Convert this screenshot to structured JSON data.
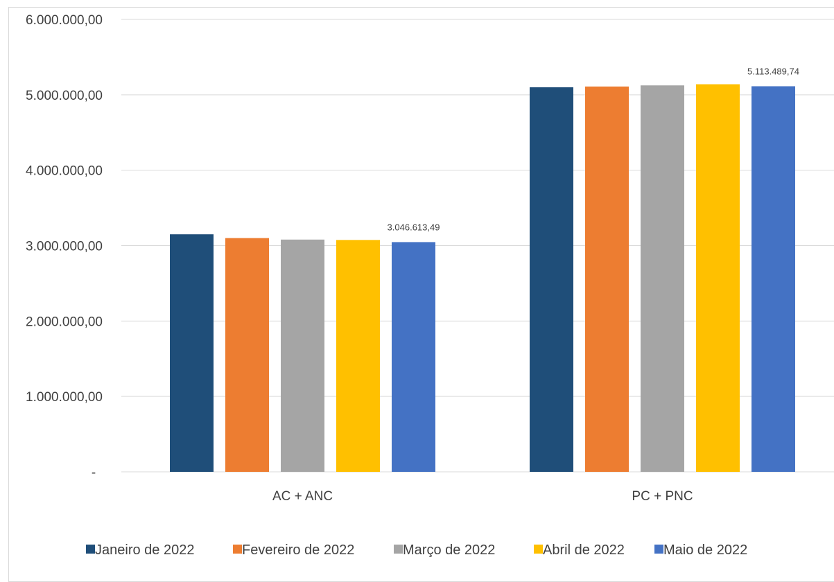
{
  "chart_data": {
    "type": "bar",
    "categories": [
      "AC + ANC",
      "PC + PNC"
    ],
    "series": [
      {
        "name": "Janeiro de 2022",
        "color": "#1f4e79",
        "values": [
          3150000,
          5100000
        ]
      },
      {
        "name": "Fevereiro de 2022",
        "color": "#ed7d31",
        "values": [
          3100000,
          5110000
        ]
      },
      {
        "name": "Março de 2022",
        "color": "#a5a5a5",
        "values": [
          3080000,
          5125000
        ]
      },
      {
        "name": "Abril de 2022",
        "color": "#ffc000",
        "values": [
          3075000,
          5140000
        ]
      },
      {
        "name": "Maio de 2022",
        "color": "#4472c4",
        "values": [
          3046613.49,
          5113489.74
        ]
      }
    ],
    "data_labels": [
      {
        "series": "Maio de 2022",
        "category": "AC + ANC",
        "text": "3.046.613,49"
      },
      {
        "series": "Maio de 2022",
        "category": "PC + PNC",
        "text": "5.113.489,74"
      }
    ],
    "ylim": [
      0,
      6000000
    ],
    "yticks": [
      0,
      1000000,
      2000000,
      3000000,
      4000000,
      5000000,
      6000000
    ],
    "ytick_labels": [
      "-",
      "1.000.000,00",
      "2.000.000,00",
      "3.000.000,00",
      "4.000.000,00",
      "5.000.000,00",
      "6.000.000,00"
    ],
    "grid": true,
    "legend_position": "bottom"
  }
}
